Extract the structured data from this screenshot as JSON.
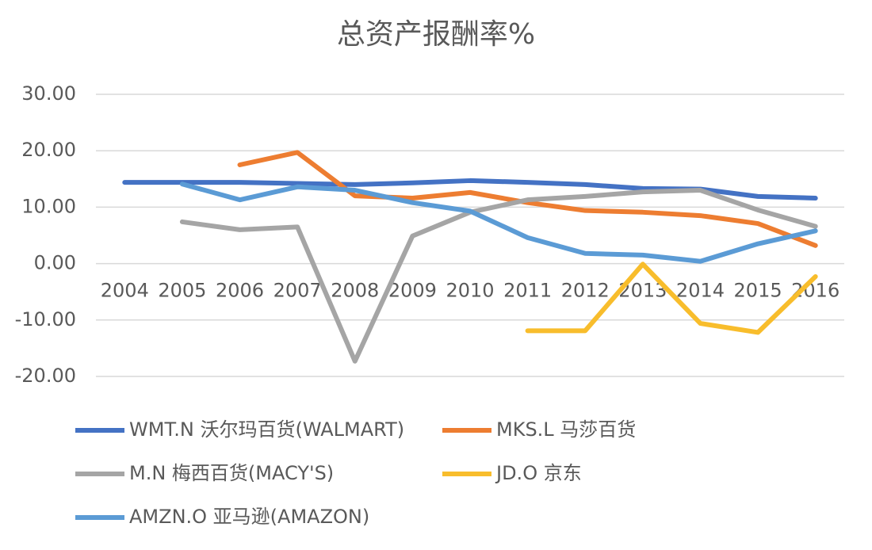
{
  "chart_data": {
    "type": "line",
    "title": "总资产报酬率%",
    "categories": [
      "2004",
      "2005",
      "2006",
      "2007",
      "2008",
      "2009",
      "2010",
      "2011",
      "2012",
      "2013",
      "2014",
      "2015",
      "2016"
    ],
    "series": [
      {
        "name": "WMT.N 沃尔玛百货(WALMART)",
        "color": "#4472c4",
        "values": [
          14.4,
          14.4,
          14.4,
          14.2,
          14.0,
          14.3,
          14.7,
          14.4,
          14.0,
          13.3,
          13.2,
          11.9,
          11.6
        ]
      },
      {
        "name": "MKS.L 马莎百货",
        "color": "#ed7d31",
        "values": [
          null,
          null,
          17.5,
          19.7,
          12.0,
          11.6,
          12.6,
          10.8,
          9.4,
          9.1,
          8.5,
          7.1,
          3.2
        ]
      },
      {
        "name": "M.N 梅西百货(MACY'S)",
        "color": "#a5a5a5",
        "values": [
          null,
          7.4,
          6.0,
          6.5,
          -17.3,
          4.9,
          9.1,
          11.3,
          11.9,
          12.7,
          13.0,
          9.5,
          6.6
        ]
      },
      {
        "name": "JD.O 京东",
        "color": "#f8bd2c",
        "values": [
          null,
          null,
          null,
          null,
          null,
          null,
          null,
          -11.9,
          -11.9,
          -0.1,
          -10.6,
          -12.2,
          -2.3
        ]
      },
      {
        "name": "AMZN.O 亚马逊(AMAZON)",
        "color": "#5b9bd5",
        "values": [
          null,
          14.1,
          11.3,
          13.6,
          13.0,
          10.8,
          9.3,
          4.6,
          1.8,
          1.5,
          0.4,
          3.5,
          5.8
        ]
      }
    ],
    "ylim": [
      -20,
      30
    ],
    "yticks": [
      {
        "value": -20,
        "label": "-20.00"
      },
      {
        "value": -10,
        "label": "-10.00"
      },
      {
        "value": 0,
        "label": "0.00"
      },
      {
        "value": 10,
        "label": "10.00"
      },
      {
        "value": 20,
        "label": "20.00"
      },
      {
        "value": 30,
        "label": "30.00"
      }
    ],
    "grid": true,
    "legend": "bottom"
  }
}
